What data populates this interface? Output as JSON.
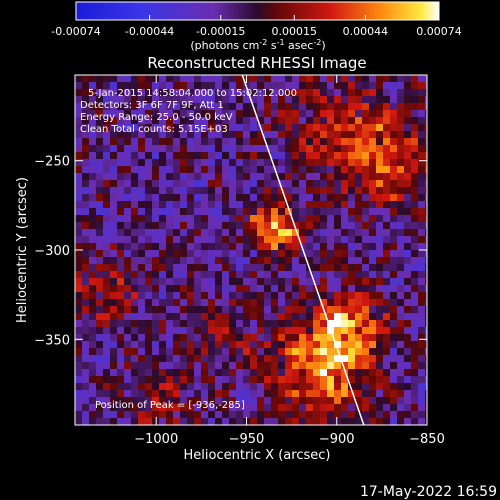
{
  "chart_data": {
    "type": "heatmap",
    "title": "Reconstructed RHESSI Image",
    "xlabel": "Heliocentric X (arcsec)",
    "ylabel": "Heliocentric Y (arcsec)",
    "xlim": [
      -1045,
      -850
    ],
    "ylim": [
      -398,
      -202
    ],
    "x_ticks": [
      -1000,
      -950,
      -900,
      -850
    ],
    "x_tick_labels": [
      "−1000",
      "−950",
      "−900",
      "−850"
    ],
    "y_ticks": [
      -250,
      -300,
      -350
    ],
    "y_tick_labels": [
      "−250",
      "−300",
      "−350"
    ],
    "colorbar": {
      "min": -0.00074,
      "max": 0.00074,
      "tick_values": [
        -0.00074,
        -0.00044,
        -0.00015,
        0.00015,
        0.00044,
        0.00074
      ],
      "tick_labels": [
        "-0.00074",
        "-0.00044",
        "-0.00015",
        "0.00015",
        "0.00044",
        "0.00074"
      ],
      "units_parts": [
        "(photons cm",
        "-2",
        " s",
        "-1",
        " asec",
        "-2",
        ")"
      ]
    },
    "annotations": [
      "5-Jan-2015 14:58:04.000 to 15:02:12.000",
      "Detectors: 3F 6F 7F 9F, Att 1",
      "Energy Range: 25.0 - 50.0 keV",
      "Clean    Total counts: 5.15E+03"
    ],
    "peak_label": "Position of Peak = [-936,-285]",
    "peak_position": [
      -936,
      -285
    ],
    "limb_line": [
      [
        -953,
        -200
      ],
      [
        -885,
        -398
      ]
    ]
  },
  "footer": {
    "date": "17-May-2022 16:59"
  }
}
